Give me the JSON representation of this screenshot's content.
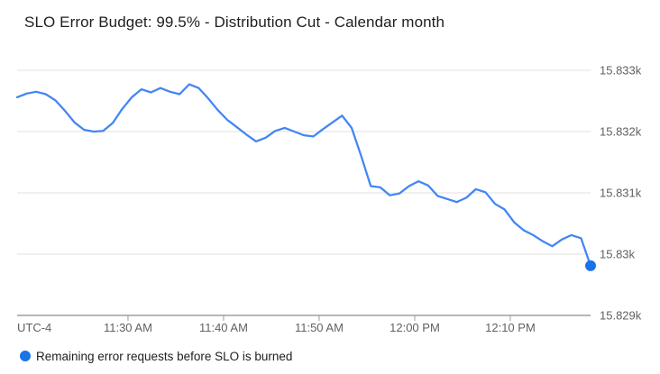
{
  "header": {
    "title": "SLO Error Budget: 99.5% - Distribution Cut - Calendar month"
  },
  "legend": {
    "label": "Remaining error requests before SLO is burned",
    "marker": "circle-icon",
    "marker_color": "#1a73e8"
  },
  "colors": {
    "line": "#4285f4",
    "endpoint_dot": "#1a73e8",
    "gridline": "#e8e8e8",
    "axis": "#9e9e9e",
    "axis_text": "#616161",
    "title_text": "#1f1f1f"
  },
  "chart_data": {
    "type": "line",
    "title": "SLO Error Budget: 99.5% - Distribution Cut - Calendar month",
    "xlabel": "",
    "ylabel": "",
    "grid": "horizontal",
    "legend_position": "bottom-left",
    "x_axis": {
      "timezone_label": "UTC-4",
      "start_time": "11:18 AM",
      "end_time": "12:18 PM",
      "interval_minutes": 1,
      "tick_labels": [
        "11:30 AM",
        "11:40 AM",
        "11:50 AM",
        "12:00 PM",
        "12:10 PM"
      ],
      "tick_offsets_minutes": [
        11.6,
        21.6,
        31.6,
        41.6,
        51.6
      ],
      "total_span_minutes": 60
    },
    "y_axis": {
      "side": "right",
      "tick_labels": [
        "15.833k",
        "15.832k",
        "15.831k",
        "15.83k",
        "15.829k"
      ],
      "tick_values": [
        15833,
        15832,
        15831,
        15830,
        15829
      ],
      "ylim": [
        15829,
        15833
      ]
    },
    "series": [
      {
        "name": "Remaining error requests before SLO is burned",
        "color": "#4285f4",
        "endpoint_dot": true,
        "endpoint_dot_color": "#1a73e8",
        "final_value": 15829.81,
        "values": [
          15832.56,
          15832.62,
          15832.65,
          15832.61,
          15832.51,
          15832.34,
          15832.15,
          15832.03,
          15832.0,
          15832.01,
          15832.14,
          15832.37,
          15832.56,
          15832.69,
          15832.64,
          15832.71,
          15832.65,
          15832.61,
          15832.77,
          15832.71,
          15832.54,
          15832.35,
          15832.19,
          15832.07,
          15831.95,
          15831.84,
          15831.9,
          15832.01,
          15832.06,
          15832.0,
          15831.94,
          15831.92,
          15832.04,
          15832.15,
          15832.26,
          15832.06,
          15831.6,
          15831.11,
          15831.09,
          15830.96,
          15830.99,
          15831.11,
          15831.19,
          15831.12,
          15830.95,
          15830.9,
          15830.85,
          15830.92,
          15831.06,
          15831.01,
          15830.82,
          15830.73,
          15830.52,
          15830.39,
          15830.31,
          15830.21,
          15830.13,
          15830.24,
          15830.31,
          15830.26,
          15829.81
        ]
      }
    ]
  }
}
